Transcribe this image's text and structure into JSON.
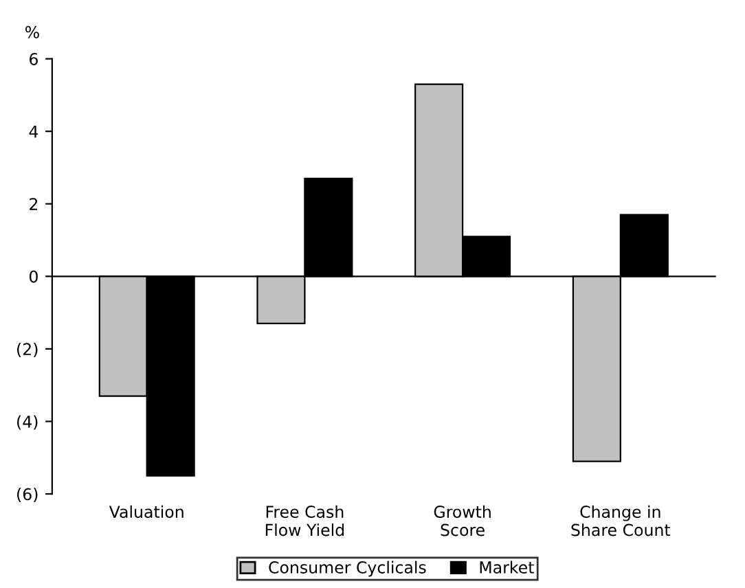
{
  "chart_data": {
    "type": "bar",
    "ylabel": "%",
    "categories": [
      "Valuation",
      "Free Cash\nFlow Yield",
      "Growth\nScore",
      "Change in\nShare Count"
    ],
    "series": [
      {
        "name": "Consumer Cyclicals",
        "color": "#c0c0c0",
        "values": [
          -3.3,
          -1.3,
          5.3,
          -5.1
        ]
      },
      {
        "name": "Market",
        "color": "#000000",
        "values": [
          -5.5,
          2.7,
          1.1,
          1.7
        ]
      }
    ],
    "ylim": [
      -6,
      6
    ],
    "yticks": [
      {
        "value": -6,
        "label": "(6)"
      },
      {
        "value": -4,
        "label": "(4)"
      },
      {
        "value": -2,
        "label": "(2)"
      },
      0,
      2,
      4,
      6
    ],
    "legend": "bottom"
  }
}
